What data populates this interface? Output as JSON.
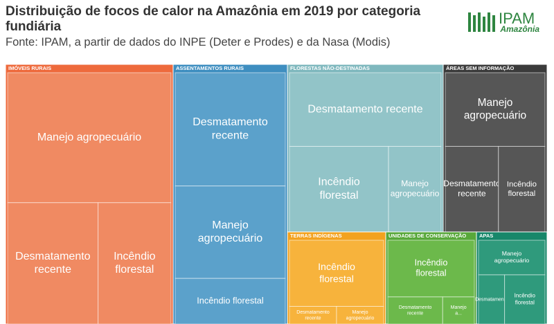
{
  "logo": {
    "name": "IPAM",
    "tagline": "Amazônia"
  },
  "chart_data": {
    "type": "treemap",
    "title": "Distribuição de focos de calor na Amazônia em 2019 por categoria fundiária",
    "subtitle": "Fonte: IPAM, a partir de dados do INPE (Deter e Prodes) e da Nasa (Modis)",
    "groups": [
      {
        "name": "IMÓVEIS RURAIS",
        "color": "#ee6a3c",
        "item_color": "#f08a62",
        "items": [
          {
            "name": "Manejo agropecuário",
            "value": 4695
          },
          {
            "name": "Desmatamento recente",
            "value": 2425
          },
          {
            "name": "Incêndio florestal",
            "value": 1955
          }
        ]
      },
      {
        "name": "ASSENTAMENTOS RURAIS",
        "color": "#3e8ec0",
        "item_color": "#5ba1cb",
        "items": [
          {
            "name": "Desmatamento recente",
            "value": 2789
          },
          {
            "name": "Manejo agropecuário",
            "value": 2277
          },
          {
            "name": "Incêndio florestal",
            "value": 1122
          }
        ]
      },
      {
        "name": "FLORESTAS NÃO-DESTINADAS",
        "color": "#7fb8be",
        "item_color": "#92c4c8",
        "items": [
          {
            "name": "Desmatamento recente",
            "value": 2520
          },
          {
            "name": "Incêndio florestal",
            "value": 1911
          },
          {
            "name": "Manejo agropecuário",
            "value": 1014
          }
        ]
      },
      {
        "name": "ÁREAS SEM INFORMAÇÃO",
        "color": "#3b3b3b",
        "item_color": "#565656",
        "items": [
          {
            "name": "Manejo agropecuário",
            "value": 1680
          },
          {
            "name": "Desmatamento recente",
            "value": 1040
          },
          {
            "name": "Incêndio florestal",
            "value": 910
          }
        ]
      },
      {
        "name": "TERRAS INDÍGENAS",
        "color": "#f3a21f",
        "item_color": "#f7b33c",
        "items": [
          {
            "name": "Incêndio florestal",
            "value": 1491
          },
          {
            "name": "Desmatamento recente",
            "value": 199
          },
          {
            "name": "Manejo agropecuário",
            "value": 199
          }
        ]
      },
      {
        "name": "UNIDADES DE CONSERVAÇÃO",
        "color": "#58a83a",
        "item_color": "#6cb94b",
        "items": [
          {
            "name": "Incêndio florestal",
            "value": 1179
          },
          {
            "name": "Desmatamento recente",
            "value": 357
          },
          {
            "name": "Manejo a...",
            "value": 206
          }
        ]
      },
      {
        "name": "APAS",
        "color": "#17876a",
        "item_color": "#2f9a7c",
        "items": [
          {
            "name": "Manejo agropecuário",
            "value": 561
          },
          {
            "name": "Desmatamen...",
            "value": 312
          },
          {
            "name": "Incêndio florestal",
            "value": 484
          }
        ]
      }
    ]
  }
}
